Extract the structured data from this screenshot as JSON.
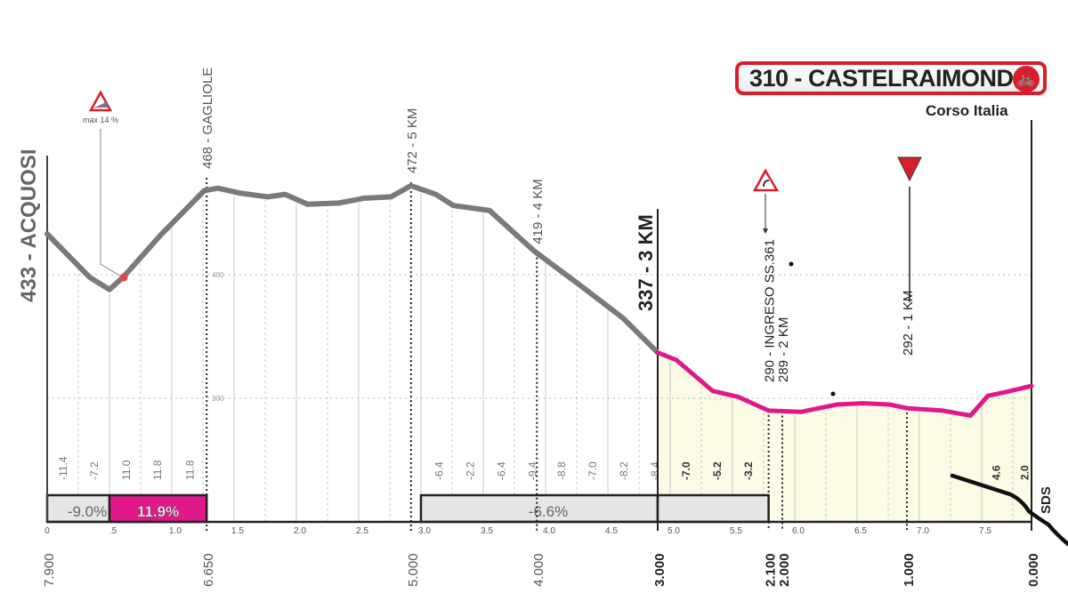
{
  "finish": {
    "title": "310 - CASTELRAIMONDO",
    "street": "Corso Italia",
    "icon": "bicycle-finish-icon",
    "color": "#d81e2a"
  },
  "start_label": "433 - ACQUOSI",
  "max_gradient_label": "max 14 %",
  "side_annotation": "SDS",
  "colors": {
    "profile": "#7a7a7a",
    "final_km": "#e0188a",
    "final_fill": "#fbfbe6",
    "box_gray": "#e6e6e6",
    "box_pink": "#e0188a"
  },
  "chart_data": {
    "type": "line",
    "title": "",
    "xlabel": "",
    "ylabel": "",
    "xlim": [
      0,
      7.9
    ],
    "ylim": [
      200,
      500
    ],
    "y_ticks": [
      "400",
      "300"
    ],
    "y_tick_values": [
      400,
      300
    ],
    "x_ticks": [
      "0",
      ".5",
      "1.0",
      "1.5",
      "2.0",
      "2.5",
      "3.0",
      "3.5",
      "4.0",
      "4.5",
      "5.0",
      "5.5",
      "6.0",
      "6.5",
      "7.0",
      "7.5"
    ],
    "x_tick_values": [
      0,
      0.5,
      1.0,
      1.5,
      2.0,
      2.5,
      3.0,
      3.5,
      4.0,
      4.5,
      5.0,
      5.5,
      6.0,
      6.5,
      7.0,
      7.5
    ],
    "profile": [
      [
        0,
        433
      ],
      [
        0.34,
        398
      ],
      [
        0.5,
        388
      ],
      [
        0.61,
        398
      ],
      [
        0.91,
        432
      ],
      [
        1.26,
        468
      ],
      [
        1.37,
        470
      ],
      [
        1.55,
        466
      ],
      [
        1.77,
        463
      ],
      [
        1.91,
        465
      ],
      [
        2.09,
        457
      ],
      [
        2.34,
        458
      ],
      [
        2.55,
        462
      ],
      [
        2.76,
        463
      ],
      [
        2.92,
        472
      ],
      [
        3.12,
        465
      ],
      [
        3.26,
        456
      ],
      [
        3.55,
        452
      ],
      [
        3.91,
        419
      ],
      [
        4.27,
        392
      ],
      [
        4.62,
        365
      ],
      [
        4.9,
        337
      ]
    ],
    "final_profile": [
      [
        4.9,
        337
      ],
      [
        5.05,
        331
      ],
      [
        5.34,
        306
      ],
      [
        5.55,
        301
      ],
      [
        5.79,
        290
      ],
      [
        6.05,
        289
      ],
      [
        6.34,
        295
      ],
      [
        6.55,
        296
      ],
      [
        6.76,
        295
      ],
      [
        6.9,
        292
      ],
      [
        7.19,
        290
      ],
      [
        7.41,
        286
      ],
      [
        7.55,
        302
      ],
      [
        7.69,
        305
      ],
      [
        7.9,
        310
      ]
    ],
    "gradients": [
      {
        "km": 0.12,
        "value": "-11.4"
      },
      {
        "km": 0.37,
        "value": "-7.2"
      },
      {
        "km": 0.63,
        "value": "11.0"
      },
      {
        "km": 0.88,
        "value": "11.8"
      },
      {
        "km": 1.14,
        "value": "11.8"
      },
      {
        "km": 3.14,
        "value": "-6.4"
      },
      {
        "km": 3.39,
        "value": "-2.2"
      },
      {
        "km": 3.64,
        "value": "-6.4"
      },
      {
        "km": 3.89,
        "value": "-9.4"
      },
      {
        "km": 4.12,
        "value": "-8.8"
      },
      {
        "km": 4.37,
        "value": "-7.0"
      },
      {
        "km": 4.62,
        "value": "-8.2"
      },
      {
        "km": 4.87,
        "value": "-8.4"
      },
      {
        "km": 5.12,
        "value": "-7.0"
      },
      {
        "km": 5.37,
        "value": "-5.2"
      },
      {
        "km": 5.62,
        "value": "-3.2"
      },
      {
        "km": 7.61,
        "value": "4.6"
      },
      {
        "km": 7.84,
        "value": "2.0"
      }
    ],
    "segments": [
      {
        "from": 0,
        "to": 0.5,
        "label": "-9.0%",
        "style": "gray"
      },
      {
        "from": 0.5,
        "to": 1.28,
        "label": "11.9%",
        "style": "pink"
      },
      {
        "from": 3.0,
        "to": 4.9,
        "label": "-6.6%",
        "style": "gray"
      },
      {
        "from": 4.9,
        "to": 5.79,
        "label": "",
        "style": "gray"
      }
    ],
    "waypoints": [
      {
        "km": 1.28,
        "label": "468 - GAGLIOLE",
        "distance_to_go": "6.650",
        "line": "dotted"
      },
      {
        "km": 2.92,
        "label": "472 - 5 KM",
        "distance_to_go": "5.000",
        "line": "dotted"
      },
      {
        "km": 3.93,
        "label": "419 - 4 KM",
        "distance_to_go": "4.000",
        "line": "dotted"
      },
      {
        "km": 4.9,
        "label": "337 - 3 KM",
        "distance_to_go": "3.000",
        "line": "solid"
      },
      {
        "km": 5.79,
        "label": "290 - INGRESO SS.361",
        "distance_to_go": "2.100",
        "line": "dotted"
      },
      {
        "km": 5.9,
        "label": "289 - 2 KM",
        "distance_to_go": "2.000",
        "line": "dotted"
      },
      {
        "km": 6.9,
        "label": "292 - 1 KM",
        "distance_to_go": "1.000",
        "line": "dotted"
      },
      {
        "km": 7.9,
        "label": "",
        "distance_to_go": "0.000",
        "line": "solid"
      }
    ],
    "start_distance": "7.900"
  }
}
